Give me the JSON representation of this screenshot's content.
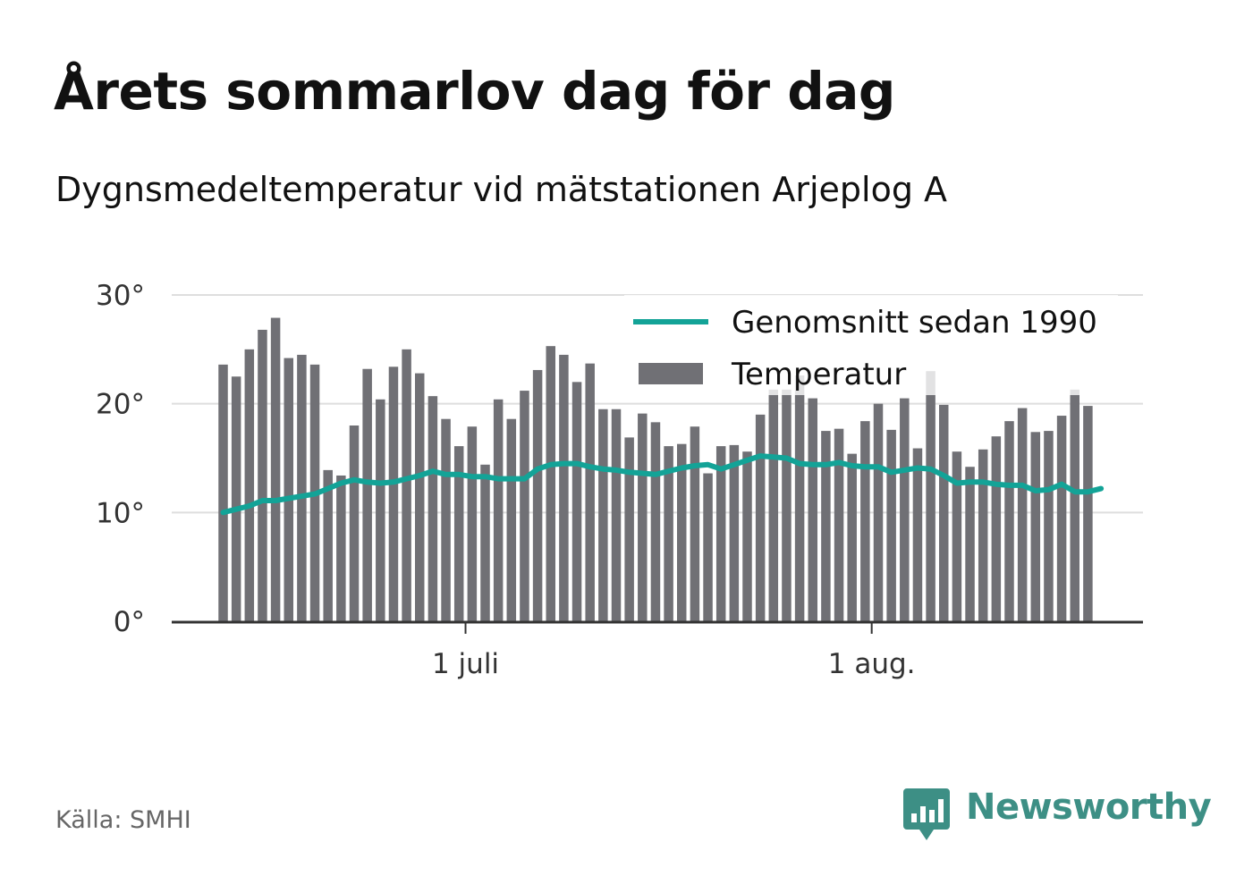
{
  "header": {
    "title": "Årets sommarlov dag för dag",
    "subtitle": "Dygnsmedeltemperatur vid mätstationen Arjeplog A"
  },
  "footer": {
    "source": "Källa: SMHI",
    "brand": "Newsworthy"
  },
  "colors": {
    "bars": "#707075",
    "bars_faded": "#e0e0e0",
    "average_line": "#13a397",
    "grid": "#dedede",
    "axis": "#333333",
    "brand": "#3d8f85"
  },
  "chart_data": {
    "type": "bar",
    "x_unit": "day",
    "start_date": "2018-06-12",
    "end_date": "2018-08-18",
    "ylim": [
      0,
      30
    ],
    "y_ticks": [
      0,
      10,
      20,
      30
    ],
    "y_tick_labels": [
      "0°",
      "10°",
      "20°",
      "30°"
    ],
    "x_ticks": [
      {
        "date": "2018-07-01",
        "label": "1 juli"
      },
      {
        "date": "2018-08-01",
        "label": "1 aug."
      }
    ],
    "grid": true,
    "legend_position": "top-right",
    "series": [
      {
        "name": "Genomsnitt sedan 1990",
        "type": "line",
        "values": [
          10.0,
          10.3,
          10.6,
          11.1,
          11.1,
          11.3,
          11.5,
          11.7,
          12.2,
          12.7,
          13.0,
          12.8,
          12.7,
          12.8,
          13.1,
          13.4,
          13.8,
          13.5,
          13.5,
          13.3,
          13.3,
          13.1,
          13.1,
          13.1,
          14.0,
          14.4,
          14.5,
          14.5,
          14.2,
          14.0,
          13.9,
          13.7,
          13.6,
          13.5,
          13.8,
          14.1,
          14.3,
          14.4,
          14.0,
          14.4,
          14.8,
          15.2,
          15.1,
          15.0,
          14.5,
          14.4,
          14.4,
          14.6,
          14.3,
          14.2,
          14.2,
          13.7,
          13.9,
          14.1,
          14.0,
          13.4,
          12.7,
          12.8,
          12.8,
          12.6,
          12.5,
          12.5,
          12.0,
          12.1,
          12.6,
          11.9,
          11.9,
          12.2
        ]
      },
      {
        "name": "Temperatur",
        "type": "bar",
        "values": [
          23.6,
          22.5,
          25.0,
          26.8,
          27.9,
          24.2,
          24.5,
          23.6,
          13.9,
          13.4,
          18.0,
          23.2,
          20.4,
          23.4,
          25.0,
          22.8,
          20.7,
          18.6,
          16.1,
          17.9,
          14.4,
          20.4,
          18.6,
          21.2,
          23.1,
          25.3,
          24.5,
          22.0,
          23.7,
          19.5,
          19.5,
          16.9,
          19.1,
          18.3,
          16.1,
          16.3,
          17.9,
          13.6,
          16.1,
          16.2,
          15.6,
          19.0,
          21.3,
          21.3,
          22.6,
          20.5,
          17.5,
          17.7,
          15.4,
          18.4,
          20.0,
          17.6,
          20.5,
          15.9,
          23.0,
          19.9,
          15.6,
          14.2,
          15.8,
          17.0,
          18.4,
          19.6,
          17.4,
          17.5,
          18.9,
          21.3,
          19.8
        ]
      }
    ]
  }
}
